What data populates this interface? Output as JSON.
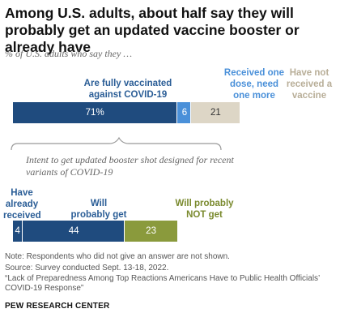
{
  "title": "Among U.S. adults, about half say they will probably get an updated vaccine booster or already have",
  "subtitle": "% of U.S. adults who say they …",
  "chart_data": [
    {
      "type": "bar",
      "orientation": "horizontal-stacked",
      "categories": [
        "Are fully vaccinated against COVID-19",
        "Received one dose, need one more",
        "Have not received a vaccine"
      ],
      "values": [
        71,
        6,
        21
      ],
      "value_labels": [
        "71%",
        "6",
        "21"
      ],
      "colors": [
        "#1f4b7e",
        "#4a90d9",
        "#ddd6c6"
      ]
    },
    {
      "type": "bar",
      "orientation": "horizontal-stacked",
      "annotation": "Intent to get updated booster shot designed for recent variants of COVID-19",
      "categories": [
        "Have already received",
        "Will probably get",
        "Will probably NOT get"
      ],
      "values": [
        4,
        44,
        23
      ],
      "value_labels": [
        "4",
        "44",
        "23"
      ],
      "colors": [
        "#1f4b7e",
        "#1f4b7e",
        "#8a9a3c"
      ]
    }
  ],
  "top_labels": {
    "vaccinated": "Are fully vaccinated against COVID-19",
    "one_dose": "Received one dose, need one more",
    "not_received": "Have not received a vaccine"
  },
  "bottom_labels": {
    "already": "Have already received",
    "will_get": "Will probably get",
    "will_not": "Will probably NOT get"
  },
  "annotation": "Intent to get updated booster shot designed for recent variants of COVID-19",
  "notes": {
    "note": "Note: Respondents who did not give an answer are not shown.",
    "source": "Source: Survey conducted Sept. 13-18, 2022.",
    "report": "“Lack of Preparedness Among Top Reactions Americans Have to Public Health Officials’ COVID-19 Response”"
  },
  "brand": "PEW RESEARCH CENTER",
  "colors": {
    "dark_blue": "#1f4b7e",
    "light_blue": "#4a90d9",
    "beige": "#ddd6c6",
    "olive": "#8a9a3c",
    "blue_text": "#2a5d96",
    "light_blue_text": "#4a90d9",
    "beige_text": "#b8ae98",
    "olive_text": "#7a8a2e"
  }
}
